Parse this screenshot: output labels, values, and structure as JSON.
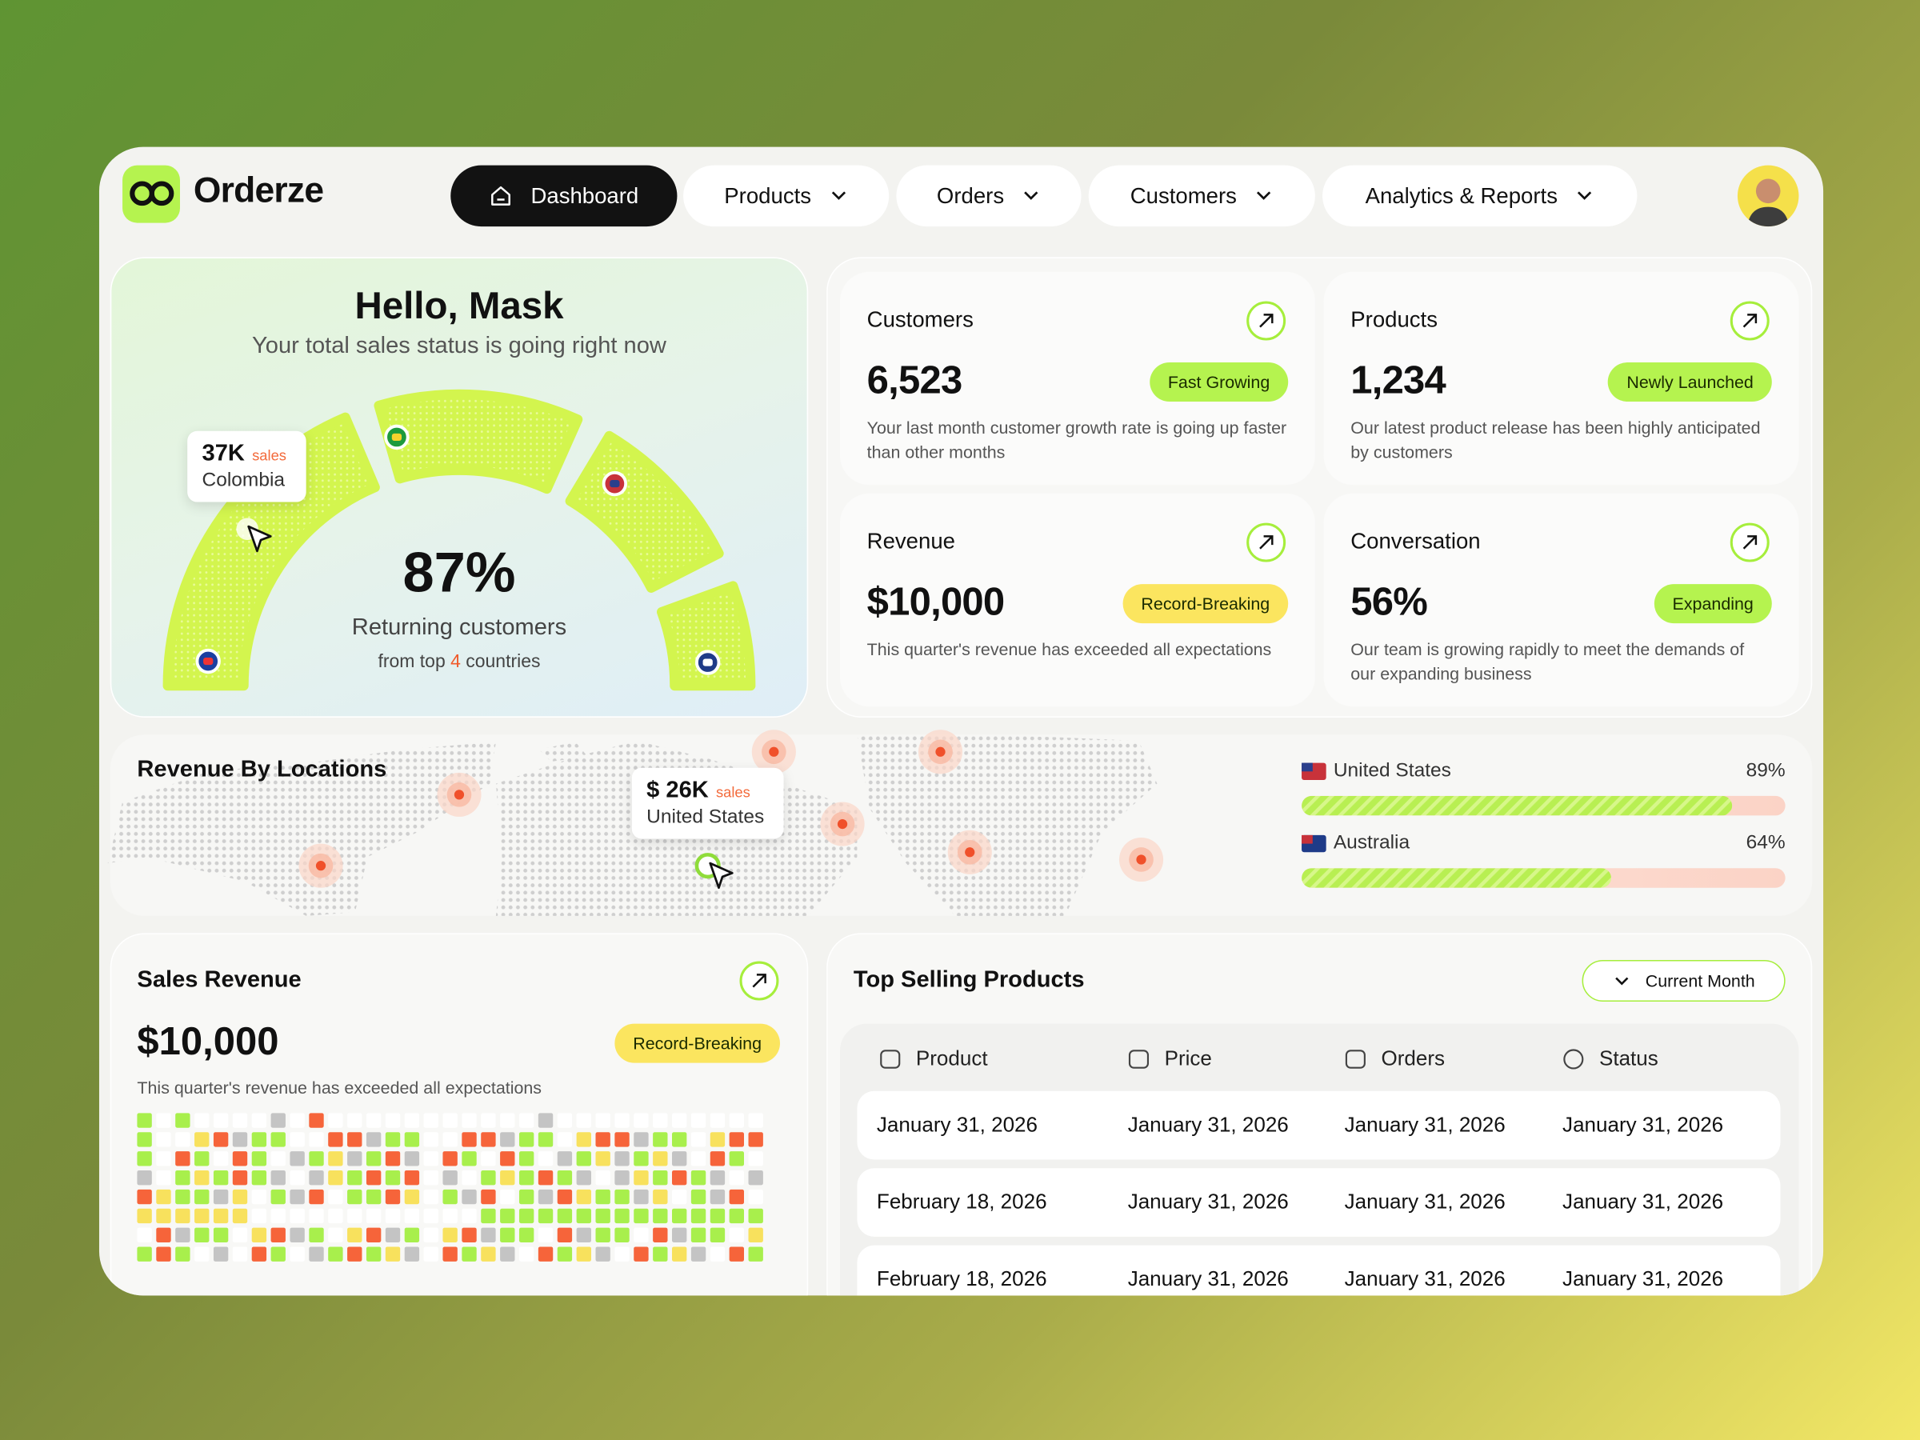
{
  "brand": "Orderze",
  "nav": [
    "Dashboard",
    "Products",
    "Orders",
    "Customers",
    "Analytics & Reports"
  ],
  "greeting": {
    "title": "Hello, Mask",
    "subtitle": "Your total sales status is going right now",
    "tooltip": {
      "value": "37K",
      "unit": "sales",
      "country": "Colombia"
    },
    "percent": "87%",
    "caption": "Returning customers",
    "footnote": {
      "before": "from top",
      "highlight": "4",
      "after": "countries"
    }
  },
  "stats": [
    {
      "title": "Customers",
      "value": "6,523",
      "badge": "Fast Growing",
      "description": "Your last month customer growth rate is going up faster than other months"
    },
    {
      "title": "Products",
      "value": "1,234",
      "badge": "Newly Launched",
      "description": "Our latest product release has been highly anticipated by customers"
    },
    {
      "title": "Revenue",
      "value": "$10,000",
      "badge": "Record-Breaking",
      "description": "This quarter's revenue has exceeded all expectations"
    },
    {
      "title": "Conversation",
      "value": "56%",
      "badge": "Expanding",
      "description": "Our team is growing rapidly to meet the demands of our expanding business"
    }
  ],
  "locations": {
    "title": "Revenue By Locations",
    "tooltip": {
      "value": "$ 26K",
      "unit": "sales",
      "country": "United States"
    },
    "items": [
      {
        "country": "United States",
        "percent": {
          "value": 89,
          "label": "89%"
        }
      },
      {
        "country": "Australia",
        "percent": {
          "value": 64,
          "label": "64%"
        }
      }
    ]
  },
  "sales_revenue": {
    "title": "Sales Revenue",
    "value": "$10,000",
    "badge": "Record-Breaking",
    "description": "This quarter's revenue has exceeded all expectations"
  },
  "top_products": {
    "title": "Top Selling Products",
    "filter": "Current Month",
    "columns": [
      "Product",
      "Price",
      "Orders",
      "Status"
    ],
    "rows": [
      [
        "January 31, 2026",
        "January 31, 2026",
        "January 31, 2026",
        "January 31, 2026"
      ],
      [
        "February 18, 2026",
        "January 31, 2026",
        "January 31, 2026",
        "January 31, 2026"
      ],
      [
        "February 18, 2026",
        "January 31, 2026",
        "January 31, 2026",
        "January 31, 2026"
      ]
    ]
  }
}
